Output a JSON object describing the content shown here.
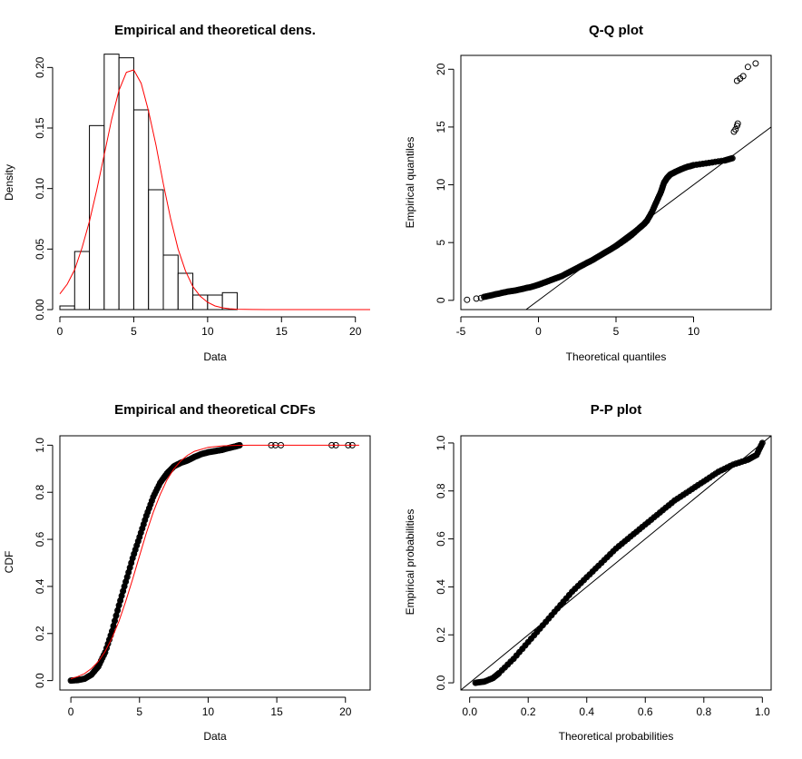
{
  "chart_data": [
    {
      "type": "bar",
      "title": "Empirical and theoretical dens.",
      "xlabel": "Data",
      "ylabel": "Density",
      "xlim": [
        0,
        21
      ],
      "ylim": [
        0,
        0.21
      ],
      "xticks": [
        0,
        5,
        10,
        15,
        20
      ],
      "yticks": [
        0.0,
        0.05,
        0.1,
        0.15,
        0.2
      ],
      "ytick_labels": [
        "0.00",
        "0.05",
        "0.10",
        "0.15",
        "0.20"
      ],
      "bins": [
        {
          "x0": 0,
          "x1": 1,
          "value": 0.003
        },
        {
          "x0": 1,
          "x1": 2,
          "value": 0.048
        },
        {
          "x0": 2,
          "x1": 3,
          "value": 0.152
        },
        {
          "x0": 3,
          "x1": 4,
          "value": 0.211
        },
        {
          "x0": 4,
          "x1": 5,
          "value": 0.208
        },
        {
          "x0": 5,
          "x1": 6,
          "value": 0.165
        },
        {
          "x0": 6,
          "x1": 7,
          "value": 0.099
        },
        {
          "x0": 7,
          "x1": 8,
          "value": 0.045
        },
        {
          "x0": 8,
          "x1": 9,
          "value": 0.03
        },
        {
          "x0": 9,
          "x1": 10,
          "value": 0.012
        },
        {
          "x0": 10,
          "x1": 11,
          "value": 0.012
        },
        {
          "x0": 11,
          "x1": 12,
          "value": 0.014
        }
      ],
      "density_curve": {
        "color": "#ff0000",
        "x": [
          0,
          0.5,
          1,
          1.5,
          2,
          2.5,
          3,
          3.5,
          4,
          4.5,
          5,
          5.5,
          6,
          6.5,
          7,
          7.5,
          8,
          8.5,
          9,
          9.5,
          10,
          10.5,
          11,
          11.5,
          12,
          13,
          14,
          15,
          21
        ],
        "y": [
          0.013,
          0.021,
          0.033,
          0.051,
          0.073,
          0.099,
          0.128,
          0.157,
          0.181,
          0.196,
          0.198,
          0.187,
          0.164,
          0.136,
          0.104,
          0.075,
          0.05,
          0.032,
          0.019,
          0.011,
          0.006,
          0.003,
          0.0015,
          0.0007,
          0.0003,
          0.0001,
          0.0,
          0.0,
          0.0
        ]
      }
    },
    {
      "type": "scatter",
      "title": "Q-Q plot",
      "xlabel": "Theoretical quantiles",
      "ylabel": "Empirical quantiles",
      "xlim": [
        -5,
        15
      ],
      "ylim": [
        -0.8,
        21.2
      ],
      "xticks": [
        -5,
        0,
        5,
        10
      ],
      "yticks": [
        0,
        5,
        10,
        15,
        20
      ],
      "reference_line": {
        "x": [
          -1,
          15
        ],
        "y": [
          -1,
          15
        ]
      },
      "curve": {
        "x": [
          -3.5,
          -3,
          -2.5,
          -2,
          -1.5,
          -1,
          -0.5,
          0,
          0.5,
          1,
          1.5,
          2,
          2.5,
          3,
          3.5,
          4,
          4.5,
          5,
          5.5,
          6,
          6.5,
          6.8,
          7,
          7.3,
          7.6,
          7.9,
          8.1,
          8.3,
          8.5,
          8.8,
          9.2,
          9.6,
          10,
          11,
          12,
          12.5
        ],
        "y": [
          0.3,
          0.45,
          0.6,
          0.75,
          0.85,
          1.0,
          1.15,
          1.35,
          1.6,
          1.85,
          2.1,
          2.45,
          2.8,
          3.15,
          3.5,
          3.9,
          4.3,
          4.7,
          5.15,
          5.65,
          6.25,
          6.6,
          6.9,
          7.6,
          8.5,
          9.4,
          10.2,
          10.6,
          10.9,
          11.1,
          11.35,
          11.55,
          11.7,
          11.9,
          12.1,
          12.3
        ]
      },
      "points": [
        {
          "x": -4.6,
          "y": 0.05
        },
        {
          "x": -4.0,
          "y": 0.15
        },
        {
          "x": -3.7,
          "y": 0.2
        },
        {
          "x": 12.6,
          "y": 14.6
        },
        {
          "x": 12.7,
          "y": 14.8
        },
        {
          "x": 12.8,
          "y": 15.1
        },
        {
          "x": 12.85,
          "y": 15.3
        },
        {
          "x": 12.8,
          "y": 19.0
        },
        {
          "x": 13.0,
          "y": 19.2
        },
        {
          "x": 13.2,
          "y": 19.4
        },
        {
          "x": 13.5,
          "y": 20.2
        },
        {
          "x": 14.0,
          "y": 20.5
        }
      ]
    },
    {
      "type": "line",
      "title": "Empirical and theoretical CDFs",
      "xlabel": "Data",
      "ylabel": "CDF",
      "xlim": [
        -0.8,
        21.8
      ],
      "ylim": [
        -0.04,
        1.04
      ],
      "xticks": [
        0,
        5,
        10,
        15,
        20
      ],
      "yticks": [
        0.0,
        0.2,
        0.4,
        0.6,
        0.8,
        1.0
      ],
      "ytick_labels": [
        "0.0",
        "0.2",
        "0.4",
        "0.6",
        "0.8",
        "1.0"
      ],
      "theoretical": {
        "color": "#ff0000",
        "x": [
          0,
          0.5,
          1,
          1.5,
          2,
          2.5,
          3,
          3.5,
          4,
          4.5,
          5,
          5.5,
          6,
          6.5,
          7,
          7.5,
          8,
          8.5,
          9,
          10,
          11,
          12,
          13,
          21
        ],
        "y": [
          0.008,
          0.017,
          0.03,
          0.051,
          0.081,
          0.124,
          0.181,
          0.252,
          0.337,
          0.431,
          0.53,
          0.627,
          0.715,
          0.79,
          0.852,
          0.899,
          0.933,
          0.957,
          0.974,
          0.991,
          0.997,
          0.999,
          1.0,
          1.0
        ]
      },
      "empirical": {
        "x": [
          0,
          0.5,
          1,
          1.5,
          2,
          2.5,
          3,
          3.5,
          4,
          4.5,
          5,
          5.5,
          6,
          6.5,
          7,
          7.5,
          8,
          8.5,
          9,
          9.5,
          10,
          10.5,
          11,
          11.5,
          12,
          12.3
        ],
        "y": [
          0.0,
          0.002,
          0.008,
          0.025,
          0.06,
          0.12,
          0.21,
          0.32,
          0.42,
          0.52,
          0.61,
          0.7,
          0.78,
          0.84,
          0.88,
          0.91,
          0.925,
          0.935,
          0.95,
          0.962,
          0.97,
          0.975,
          0.98,
          0.988,
          0.995,
          1.0
        ]
      },
      "outliers": [
        {
          "x": 14.6,
          "y": 1.0
        },
        {
          "x": 14.9,
          "y": 1.0
        },
        {
          "x": 15.3,
          "y": 1.0
        },
        {
          "x": 19.0,
          "y": 1.0
        },
        {
          "x": 19.3,
          "y": 1.0
        },
        {
          "x": 20.2,
          "y": 1.0
        },
        {
          "x": 20.5,
          "y": 1.0
        }
      ]
    },
    {
      "type": "line",
      "title": "P-P plot",
      "xlabel": "Theoretical probabilities",
      "ylabel": "Empirical probabilities",
      "xlim": [
        -0.03,
        1.03
      ],
      "ylim": [
        -0.03,
        1.03
      ],
      "xticks": [
        0.0,
        0.2,
        0.4,
        0.6,
        0.8,
        1.0
      ],
      "yticks": [
        0.0,
        0.2,
        0.4,
        0.6,
        0.8,
        1.0
      ],
      "xtick_labels": [
        "0.0",
        "0.2",
        "0.4",
        "0.6",
        "0.8",
        "1.0"
      ],
      "ytick_labels": [
        "0.0",
        "0.2",
        "0.4",
        "0.6",
        "0.8",
        "1.0"
      ],
      "reference_line": {
        "x": [
          -0.03,
          1.03
        ],
        "y": [
          -0.03,
          1.03
        ]
      },
      "curve": {
        "x": [
          0.02,
          0.05,
          0.08,
          0.1,
          0.15,
          0.2,
          0.25,
          0.3,
          0.35,
          0.4,
          0.45,
          0.5,
          0.55,
          0.6,
          0.65,
          0.7,
          0.75,
          0.8,
          0.85,
          0.9,
          0.95,
          0.98,
          1.0
        ],
        "y": [
          0.0,
          0.005,
          0.02,
          0.04,
          0.1,
          0.17,
          0.24,
          0.31,
          0.38,
          0.44,
          0.5,
          0.56,
          0.61,
          0.66,
          0.71,
          0.76,
          0.8,
          0.84,
          0.88,
          0.91,
          0.93,
          0.95,
          1.0
        ]
      }
    }
  ]
}
